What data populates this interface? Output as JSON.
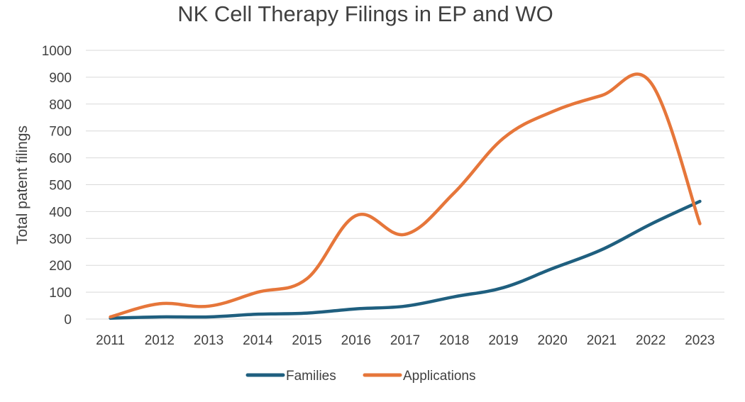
{
  "chart_data": {
    "type": "line",
    "title": "NK Cell Therapy Filings in EP and WO",
    "xlabel": "",
    "ylabel": "Total patent filings",
    "categories": [
      "2011",
      "2012",
      "2013",
      "2014",
      "2015",
      "2016",
      "2017",
      "2018",
      "2019",
      "2020",
      "2021",
      "2022",
      "2023"
    ],
    "ylim": [
      0,
      1000
    ],
    "yticks": [
      "0",
      "100",
      "200",
      "300",
      "400",
      "500",
      "600",
      "700",
      "800",
      "900",
      "1000"
    ],
    "grid": true,
    "legend_position": "bottom",
    "series": [
      {
        "name": "Families",
        "color": "#1f5f7f",
        "values": [
          3,
          8,
          8,
          18,
          22,
          38,
          48,
          83,
          117,
          188,
          258,
          353,
          438
        ]
      },
      {
        "name": "Applications",
        "color": "#e6763a",
        "values": [
          8,
          57,
          48,
          100,
          150,
          385,
          315,
          470,
          673,
          772,
          832,
          880,
          355
        ]
      }
    ]
  }
}
